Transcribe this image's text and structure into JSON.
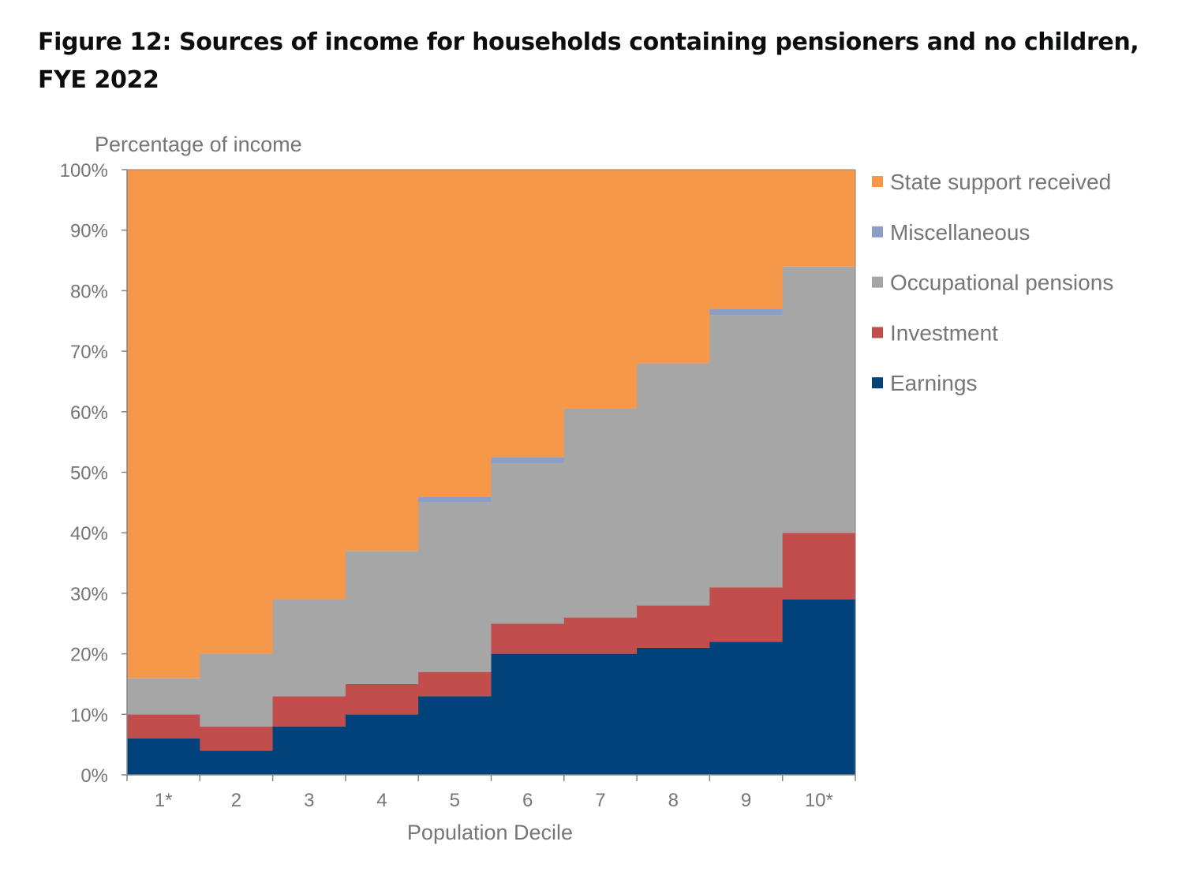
{
  "figure": {
    "title": "Figure 12: Sources of income for households containing pensioners and no children, FYE 2022"
  },
  "chart_data": {
    "type": "area",
    "stacked": true,
    "step": true,
    "title": "Figure 12: Sources of income for households containing pensioners and no children, FYE 2022",
    "xlabel": "Population Decile",
    "ylabel": "Percentage of income",
    "ylim": [
      0,
      100
    ],
    "y_ticks": [
      "0%",
      "10%",
      "20%",
      "30%",
      "40%",
      "50%",
      "60%",
      "70%",
      "80%",
      "90%",
      "100%"
    ],
    "categories": [
      "1*",
      "2",
      "3",
      "4",
      "5",
      "6",
      "7",
      "8",
      "9",
      "10*"
    ],
    "legend_position": "right",
    "grid": false,
    "series": [
      {
        "name": "Earnings",
        "color": "#00427a",
        "values": [
          6,
          4,
          8,
          10,
          13,
          20,
          20,
          21,
          22,
          29
        ]
      },
      {
        "name": "Investment",
        "color": "#c24d4d",
        "values": [
          4,
          4,
          5,
          5,
          4,
          5,
          6,
          7,
          9,
          11
        ]
      },
      {
        "name": "Occupational pensions",
        "color": "#a6a6a6",
        "values": [
          6,
          12,
          16,
          22,
          28,
          26.5,
          34.5,
          40,
          45,
          44
        ]
      },
      {
        "name": "Miscellaneous",
        "color": "#8c9ec5",
        "values": [
          0,
          0,
          0,
          0,
          1,
          1,
          0,
          0,
          1,
          0
        ]
      },
      {
        "name": "State support received",
        "color": "#f69849",
        "values": [
          84,
          80,
          71,
          63,
          54,
          47.5,
          39.5,
          32,
          23,
          16
        ]
      }
    ],
    "legend_order": [
      "State support received",
      "Miscellaneous",
      "Occupational pensions",
      "Investment",
      "Earnings"
    ]
  }
}
